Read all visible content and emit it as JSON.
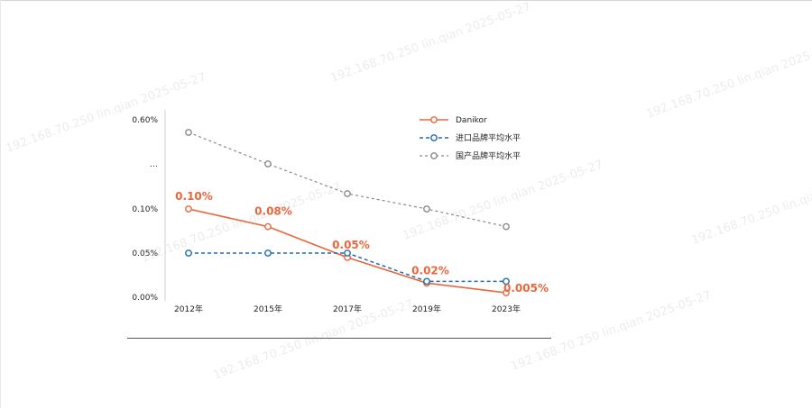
{
  "watermark": "192.168.70.250  lin.qian  2025-05-27",
  "colors": {
    "danikor": "#e8673c",
    "import": "#1f6bb0",
    "domestic": "#8a8a8a"
  },
  "chart_data": {
    "type": "line",
    "categories": [
      "2012年",
      "2015年",
      "2017年",
      "2019年",
      "2023年"
    ],
    "y_tick_labels": [
      "0.00%",
      "0.05%",
      "0.10%",
      "…",
      "0.60%"
    ],
    "y_axis_note": "broken axis: values above 0.10% compressed",
    "series": [
      {
        "name": "Danikor",
        "style": "solid",
        "values": [
          0.1,
          0.08,
          0.045,
          0.016,
          0.005
        ],
        "data_labels": [
          "0.10%",
          "0.08%",
          "0.05%",
          "0.02%",
          "0.005%"
        ]
      },
      {
        "name": "进口品牌平均水平",
        "style": "dashed",
        "values": [
          0.05,
          0.05,
          0.05,
          0.018,
          0.018
        ]
      },
      {
        "name": "国产品牌平均水平",
        "style": "dashed",
        "display_levels": [
          0.185,
          0.15,
          0.117,
          0.1,
          0.08
        ]
      }
    ],
    "legend_position": "top-right",
    "grid": false
  }
}
